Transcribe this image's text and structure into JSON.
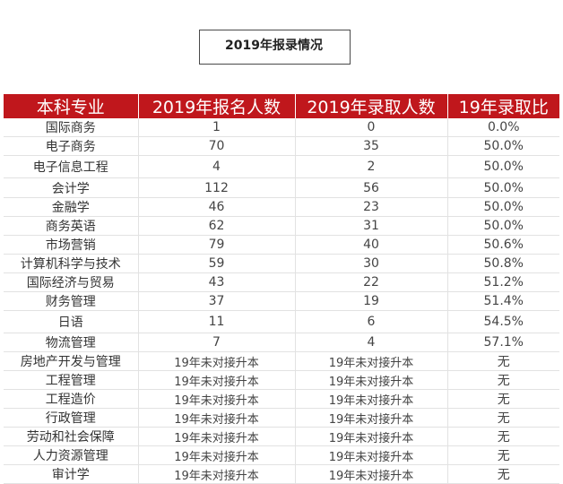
{
  "title": "2019年报录情况",
  "colors": {
    "accent_red": "#c0171c",
    "header_text": "#ffffff"
  },
  "table": {
    "headers": [
      "本科专业",
      "2019年报名人数",
      "2019年录取人数",
      "19年录取比"
    ],
    "rows": [
      [
        "国际商务",
        "1",
        "0",
        "0.0%"
      ],
      [
        "电子商务",
        "70",
        "35",
        "50.0%"
      ],
      [
        "电子信息工程",
        "4",
        "2",
        "50.0%"
      ],
      [
        "会计学",
        "112",
        "56",
        "50.0%"
      ],
      [
        "金融学",
        "46",
        "23",
        "50.0%"
      ],
      [
        "商务英语",
        "62",
        "31",
        "50.0%"
      ],
      [
        "市场营销",
        "79",
        "40",
        "50.6%"
      ],
      [
        "计算机科学与技术",
        "59",
        "30",
        "50.8%"
      ],
      [
        "国际经济与贸易",
        "43",
        "22",
        "51.2%"
      ],
      [
        "财务管理",
        "37",
        "19",
        "51.4%"
      ],
      [
        "日语",
        "11",
        "6",
        "54.5%"
      ],
      [
        "物流管理",
        "7",
        "4",
        "57.1%"
      ],
      [
        "房地产开发与管理",
        "19年未对接升本",
        "19年未对接升本",
        "无"
      ],
      [
        "工程管理",
        "19年未对接升本",
        "19年未对接升本",
        "无"
      ],
      [
        "工程造价",
        "19年未对接升本",
        "19年未对接升本",
        "无"
      ],
      [
        "行政管理",
        "19年未对接升本",
        "19年未对接升本",
        "无"
      ],
      [
        "劳动和社会保障",
        "19年未对接升本",
        "19年未对接升本",
        "无"
      ],
      [
        "人力资源管理",
        "19年未对接升本",
        "19年未对接升本",
        "无"
      ],
      [
        "审计学",
        "19年未对接升本",
        "19年未对接升本",
        "无"
      ]
    ]
  }
}
